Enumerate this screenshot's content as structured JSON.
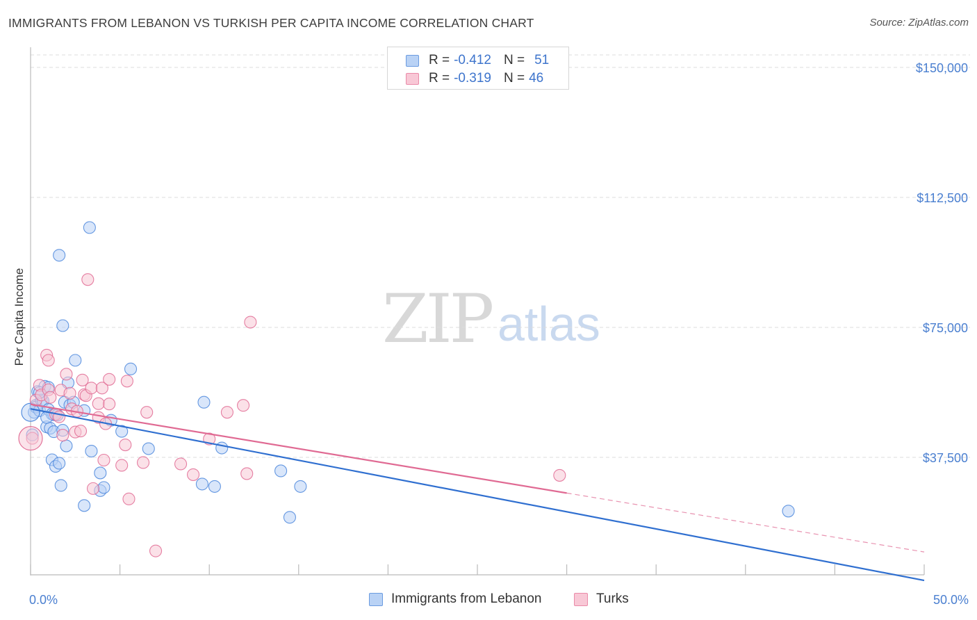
{
  "title": "IMMIGRANTS FROM LEBANON VS TURKISH PER CAPITA INCOME CORRELATION CHART",
  "source": "Source: ZipAtlas.com",
  "watermark": {
    "zip": "ZIP",
    "atlas": "atlas"
  },
  "legend_top": {
    "rows": [
      {
        "r_label": "R =",
        "r_value": "-0.412",
        "n_label": "N =",
        "n_value": "51",
        "color": "#6a9be0",
        "fill": "#b9d2f5"
      },
      {
        "r_label": "R =",
        "r_value": "-0.319",
        "n_label": "N =",
        "n_value": "46",
        "color": "#ea8aa8",
        "fill": "#f8c8d6"
      }
    ]
  },
  "legend_bottom": [
    {
      "label": "Immigrants from Lebanon",
      "color": "#6a9be0",
      "fill": "#b9d2f5"
    },
    {
      "label": "Turks",
      "color": "#ea8aa8",
      "fill": "#f8c8d6"
    }
  ],
  "chart_data": {
    "type": "scatter",
    "title": "IMMIGRANTS FROM LEBANON VS TURKISH PER CAPITA INCOME CORRELATION CHART",
    "xlabel": "",
    "ylabel": "Per Capita Income",
    "xlim": [
      0,
      50
    ],
    "ylim": [
      0,
      150000
    ],
    "x_tick_labels": [
      "0.0%",
      "50.0%"
    ],
    "y_ticks": [
      37500,
      75000,
      112500,
      150000
    ],
    "y_tick_labels": [
      "$37,500",
      "$75,000",
      "$112,500",
      "$150,000"
    ],
    "grid": true,
    "legend_position": "top-center",
    "series": [
      {
        "name": "Immigrants from Lebanon",
        "color": "#4a86dc",
        "fill": "#b9d2f5",
        "r": -0.412,
        "n": 51,
        "points": [
          [
            0.2,
            50500
          ],
          [
            0.3,
            52500
          ],
          [
            0.3,
            52000
          ],
          [
            0.4,
            56500
          ],
          [
            0.5,
            51000
          ],
          [
            0.6,
            54000
          ],
          [
            0.7,
            53800
          ],
          [
            0.8,
            58000
          ],
          [
            0.9,
            46300
          ],
          [
            1.0,
            57700
          ],
          [
            1.0,
            51300
          ],
          [
            1.1,
            45900
          ],
          [
            1.2,
            36800
          ],
          [
            1.2,
            50000
          ],
          [
            1.3,
            49800
          ],
          [
            1.3,
            44900
          ],
          [
            1.4,
            34900
          ],
          [
            1.6,
            35800
          ],
          [
            1.7,
            29400
          ],
          [
            1.8,
            45300
          ],
          [
            1.8,
            75500
          ],
          [
            1.9,
            53400
          ],
          [
            2.0,
            40800
          ],
          [
            2.1,
            59000
          ],
          [
            2.2,
            52600
          ],
          [
            2.5,
            65500
          ],
          [
            1.6,
            95800
          ],
          [
            3.0,
            23600
          ],
          [
            3.0,
            51000
          ],
          [
            3.3,
            103800
          ],
          [
            3.4,
            39300
          ],
          [
            3.9,
            33000
          ],
          [
            3.9,
            27900
          ],
          [
            4.1,
            28800
          ],
          [
            4.5,
            48200
          ],
          [
            5.1,
            45000
          ],
          [
            5.6,
            63000
          ],
          [
            6.6,
            40000
          ],
          [
            9.6,
            29800
          ],
          [
            9.7,
            53400
          ],
          [
            10.3,
            29100
          ],
          [
            10.7,
            40200
          ],
          [
            14.0,
            33600
          ],
          [
            14.5,
            20200
          ],
          [
            15.1,
            29100
          ],
          [
            42.4,
            22000
          ],
          [
            0.1,
            44000
          ],
          [
            0.5,
            56200
          ],
          [
            1.5,
            49700
          ],
          [
            2.4,
            53400
          ],
          [
            0.9,
            49000
          ]
        ],
        "trend": {
          "x0": 0,
          "y0": 51500,
          "x1": 50,
          "y1": 2000
        }
      },
      {
        "name": "Turks",
        "color": "#e06a93",
        "fill": "#f8c8d6",
        "r": -0.319,
        "n": 46,
        "points": [
          [
            0.1,
            43000
          ],
          [
            0.3,
            54000
          ],
          [
            0.5,
            58300
          ],
          [
            0.6,
            55500
          ],
          [
            0.9,
            67000
          ],
          [
            1.0,
            57000
          ],
          [
            1.0,
            65500
          ],
          [
            1.1,
            54800
          ],
          [
            1.4,
            49900
          ],
          [
            1.6,
            49200
          ],
          [
            1.7,
            56900
          ],
          [
            1.8,
            43900
          ],
          [
            2.0,
            61500
          ],
          [
            2.2,
            56000
          ],
          [
            2.3,
            51500
          ],
          [
            2.5,
            44800
          ],
          [
            2.6,
            50800
          ],
          [
            2.8,
            45100
          ],
          [
            2.9,
            59800
          ],
          [
            3.0,
            55600
          ],
          [
            3.1,
            55300
          ],
          [
            3.2,
            88800
          ],
          [
            3.4,
            57500
          ],
          [
            3.5,
            28500
          ],
          [
            3.8,
            53000
          ],
          [
            3.8,
            49000
          ],
          [
            4.0,
            57500
          ],
          [
            4.1,
            36700
          ],
          [
            4.2,
            47200
          ],
          [
            4.4,
            52900
          ],
          [
            4.4,
            60000
          ],
          [
            5.1,
            35200
          ],
          [
            5.3,
            41100
          ],
          [
            5.4,
            59500
          ],
          [
            5.5,
            25500
          ],
          [
            6.3,
            36000
          ],
          [
            6.5,
            50500
          ],
          [
            7.0,
            10500
          ],
          [
            8.4,
            35600
          ],
          [
            9.1,
            32500
          ],
          [
            10.0,
            42800
          ],
          [
            11.0,
            50500
          ],
          [
            11.9,
            52500
          ],
          [
            12.1,
            32800
          ],
          [
            12.3,
            76500
          ],
          [
            29.6,
            32300
          ]
        ],
        "trend": {
          "x0": 0,
          "y0": 52800,
          "x1": 30,
          "y1": 27200
        },
        "trend_dashed": {
          "x0": 30,
          "y0": 27200,
          "x1": 50,
          "y1": 10200
        }
      }
    ]
  }
}
